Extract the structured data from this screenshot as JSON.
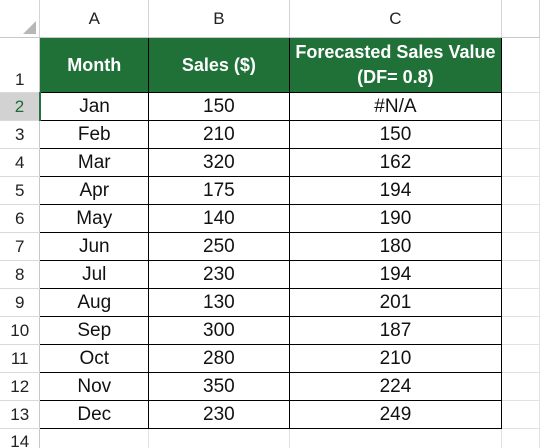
{
  "sheet": {
    "columns": [
      "A",
      "B",
      "C"
    ],
    "row_numbers": [
      "1",
      "2",
      "3",
      "4",
      "5",
      "6",
      "7",
      "8",
      "9",
      "10",
      "11",
      "12",
      "13",
      "14"
    ],
    "active_row": "2",
    "header": {
      "month": "Month",
      "sales": "Sales ($)",
      "forecast_line1": "Forecasted Sales Value",
      "forecast_line2": "(DF= 0.8)"
    },
    "rows": [
      {
        "month": "Jan",
        "sales": "150",
        "forecast": "#N/A"
      },
      {
        "month": "Feb",
        "sales": "210",
        "forecast": "150"
      },
      {
        "month": "Mar",
        "sales": "320",
        "forecast": "162"
      },
      {
        "month": "Apr",
        "sales": "175",
        "forecast": "194"
      },
      {
        "month": "May",
        "sales": "140",
        "forecast": "190"
      },
      {
        "month": "Jun",
        "sales": "250",
        "forecast": "180"
      },
      {
        "month": "Jul",
        "sales": "230",
        "forecast": "194"
      },
      {
        "month": "Aug",
        "sales": "130",
        "forecast": "201"
      },
      {
        "month": "Sep",
        "sales": "300",
        "forecast": "187"
      },
      {
        "month": "Oct",
        "sales": "280",
        "forecast": "210"
      },
      {
        "month": "Nov",
        "sales": "350",
        "forecast": "224"
      },
      {
        "month": "Dec",
        "sales": "230",
        "forecast": "249"
      }
    ],
    "colors": {
      "header_fill": "#1f7138",
      "header_text": "#ffffff",
      "active_row_accent": "#217346"
    }
  }
}
